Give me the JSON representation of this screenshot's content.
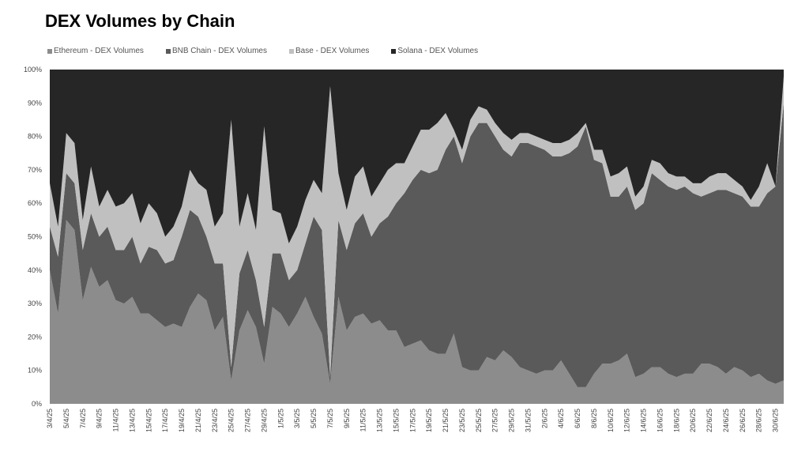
{
  "chart_data": {
    "type": "area",
    "stacked": true,
    "normalized": true,
    "title": "DEX Volumes by Chain",
    "xlabel": "",
    "ylabel": "",
    "ylim": [
      0,
      100
    ],
    "y_ticks": [
      "0%",
      "10%",
      "20%",
      "30%",
      "40%",
      "50%",
      "60%",
      "70%",
      "80%",
      "90%",
      "100%"
    ],
    "x_ticks": [
      "3/4/25",
      "5/4/25",
      "7/4/25",
      "9/4/25",
      "11/4/25",
      "13/4/25",
      "15/4/25",
      "17/4/25",
      "19/4/25",
      "21/4/25",
      "23/4/25",
      "25/4/25",
      "27/4/25",
      "29/4/25",
      "1/5/25",
      "3/5/25",
      "5/5/25",
      "7/5/25",
      "9/5/25",
      "11/5/25",
      "13/5/25",
      "15/5/25",
      "17/5/25",
      "19/5/25",
      "21/5/25",
      "23/5/25",
      "25/5/25",
      "27/5/25",
      "29/5/25",
      "31/5/25",
      "2/6/25",
      "4/6/25",
      "6/6/25",
      "8/6/25",
      "10/6/25",
      "12/6/25",
      "14/6/25",
      "16/6/25",
      "18/6/25",
      "20/6/25",
      "22/6/25",
      "24/6/25",
      "26/6/25",
      "28/6/25",
      "30/6/25"
    ],
    "x": [
      "3/4/25",
      "4/4/25",
      "5/4/25",
      "6/4/25",
      "7/4/25",
      "8/4/25",
      "9/4/25",
      "10/4/25",
      "11/4/25",
      "12/4/25",
      "13/4/25",
      "14/4/25",
      "15/4/25",
      "16/4/25",
      "17/4/25",
      "18/4/25",
      "19/4/25",
      "20/4/25",
      "21/4/25",
      "22/4/25",
      "23/4/25",
      "24/4/25",
      "25/4/25",
      "26/4/25",
      "27/4/25",
      "28/4/25",
      "29/4/25",
      "30/4/25",
      "1/5/25",
      "2/5/25",
      "3/5/25",
      "4/5/25",
      "5/5/25",
      "6/5/25",
      "7/5/25",
      "8/5/25",
      "9/5/25",
      "10/5/25",
      "11/5/25",
      "12/5/25",
      "13/5/25",
      "14/5/25",
      "15/5/25",
      "16/5/25",
      "17/5/25",
      "18/5/25",
      "19/5/25",
      "20/5/25",
      "21/5/25",
      "22/5/25",
      "23/5/25",
      "24/5/25",
      "25/5/25",
      "26/5/25",
      "27/5/25",
      "28/5/25",
      "29/5/25",
      "30/5/25",
      "31/5/25",
      "1/6/25",
      "2/6/25",
      "3/6/25",
      "4/6/25",
      "5/6/25",
      "6/6/25",
      "7/6/25",
      "8/6/25",
      "9/6/25",
      "10/6/25",
      "11/6/25",
      "12/6/25",
      "13/6/25",
      "14/6/25",
      "15/6/25",
      "16/6/25",
      "17/6/25",
      "18/6/25",
      "19/6/25",
      "20/6/25",
      "21/6/25",
      "22/6/25",
      "23/6/25",
      "24/6/25",
      "25/6/25",
      "26/6/25",
      "27/6/25",
      "28/6/25",
      "29/6/25",
      "30/6/25",
      "1/7/25"
    ],
    "series": [
      {
        "name": "Ethereum - DEX Volumes",
        "color": "#8c8c8c",
        "values": [
          40,
          27,
          55,
          52,
          31,
          41,
          35,
          37,
          31,
          30,
          32,
          27,
          27,
          25,
          23,
          24,
          23,
          29,
          33,
          31,
          22,
          26,
          7,
          22,
          28,
          23,
          12,
          29,
          27,
          23,
          27,
          32,
          26,
          21,
          6,
          32,
          22,
          26,
          27,
          24,
          25,
          22,
          22,
          17,
          18,
          19,
          16,
          15,
          15,
          21,
          11,
          10,
          10,
          14,
          13,
          16,
          14,
          11,
          10,
          9,
          10,
          10,
          13,
          9,
          5,
          5,
          9,
          12,
          12,
          13,
          15,
          8,
          9,
          11,
          11,
          9,
          8,
          9,
          9,
          12,
          12,
          11,
          9,
          11,
          10,
          8,
          9,
          7,
          6,
          7
        ]
      },
      {
        "name": "BNB Chain - DEX Volumes",
        "color": "#5a5a5a",
        "values": [
          13,
          17,
          14,
          14,
          15,
          16,
          15,
          16,
          15,
          16,
          18,
          15,
          20,
          21,
          19,
          19,
          27,
          29,
          23,
          19,
          20,
          16,
          4,
          17,
          18,
          14,
          11,
          16,
          18,
          14,
          13,
          16,
          30,
          31,
          2,
          23,
          24,
          28,
          30,
          26,
          29,
          34,
          38,
          46,
          49,
          51,
          53,
          55,
          61,
          59,
          61,
          70,
          74,
          70,
          67,
          60,
          60,
          67,
          68,
          68,
          66,
          64,
          61,
          66,
          72,
          78,
          64,
          60,
          50,
          49,
          50,
          50,
          51,
          58,
          56,
          56,
          56,
          56,
          54,
          50,
          51,
          53,
          55,
          52,
          52,
          51,
          50,
          56,
          59,
          83
        ]
      },
      {
        "name": "Base - DEX Volumes",
        "color": "#c0c0c0",
        "values": [
          13,
          9,
          12,
          12,
          9,
          14,
          9,
          11,
          13,
          14,
          13,
          12,
          13,
          11,
          8,
          10,
          9,
          12,
          10,
          14,
          11,
          15,
          74,
          14,
          17,
          15,
          60,
          13,
          12,
          11,
          13,
          13,
          11,
          11,
          87,
          14,
          12,
          14,
          14,
          12,
          12,
          14,
          12,
          9,
          10,
          12,
          13,
          14,
          11,
          2,
          4,
          5,
          5,
          4,
          4,
          5,
          5,
          3,
          3,
          3,
          3,
          4,
          4,
          4,
          4,
          1,
          3,
          4,
          6,
          7,
          6,
          4,
          5,
          4,
          5,
          4,
          4,
          3,
          3,
          4,
          5,
          5,
          5,
          4,
          3,
          2,
          6,
          9,
          0,
          8
        ]
      },
      {
        "name": "Solana - DEX Volumes",
        "color": "#262626",
        "values": [
          34,
          47,
          19,
          22,
          45,
          29,
          41,
          36,
          41,
          40,
          37,
          46,
          40,
          43,
          50,
          47,
          41,
          30,
          34,
          36,
          47,
          43,
          15,
          47,
          37,
          48,
          17,
          42,
          43,
          52,
          47,
          39,
          33,
          37,
          5,
          31,
          42,
          32,
          29,
          38,
          34,
          30,
          28,
          28,
          23,
          18,
          18,
          16,
          13,
          18,
          24,
          15,
          11,
          12,
          16,
          19,
          21,
          19,
          19,
          20,
          21,
          22,
          22,
          21,
          19,
          16,
          24,
          24,
          32,
          31,
          29,
          38,
          35,
          27,
          28,
          31,
          32,
          32,
          34,
          34,
          32,
          31,
          31,
          33,
          35,
          39,
          35,
          28,
          35,
          2
        ]
      }
    ]
  }
}
